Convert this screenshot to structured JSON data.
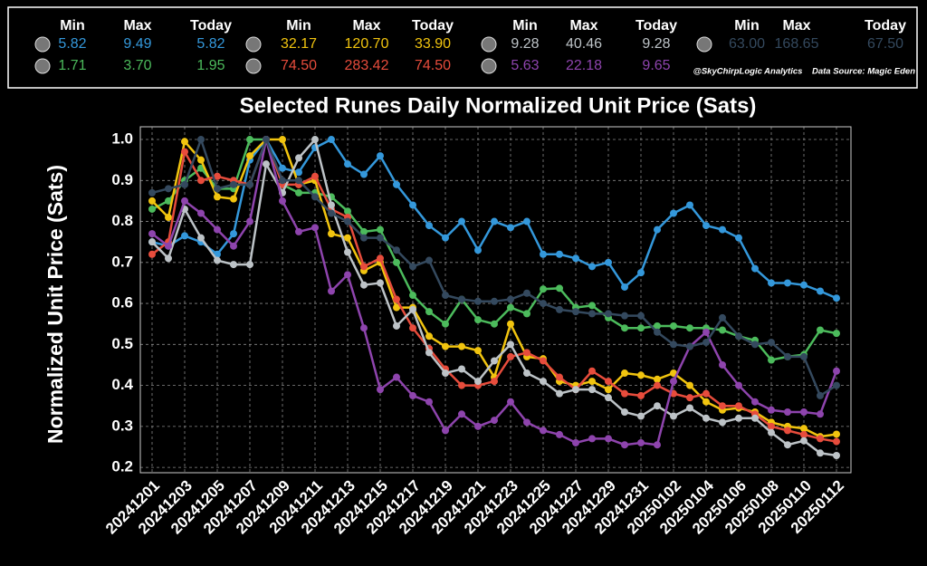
{
  "chart_data": {
    "type": "line",
    "title": "Selected Runes Daily Normalized Unit Price (Sats)",
    "y_label": "Normalized Unit Price (Sats)",
    "stats_headers": [
      "Min",
      "Max",
      "Today"
    ],
    "attribution": "@SkyChirpLogic Analytics",
    "source": "Data Source: Magic Eden",
    "grid": true,
    "ylim": [
      0.187,
      1.031
    ],
    "yticks": [
      0.2,
      0.3,
      0.4,
      0.5,
      0.6,
      0.7,
      0.8,
      0.9,
      {
        "value": 1.0,
        "label": "1.0"
      }
    ],
    "categories": [
      "20241201",
      null,
      "20241203",
      null,
      "20241205",
      null,
      "20241207",
      null,
      "20241209",
      null,
      "20241211",
      null,
      "20241213",
      null,
      "20241215",
      null,
      "20241217",
      null,
      "20241219",
      null,
      "20241221",
      null,
      "20241223",
      null,
      "20241225",
      null,
      "20241227",
      null,
      "20241229",
      null,
      "20241231",
      null,
      "20250102",
      null,
      "20250104",
      null,
      "20250106",
      null,
      "20250108",
      null,
      "20250110",
      null,
      "20250112"
    ],
    "series": [
      {
        "color": "#3498db",
        "stats": [
          "5.82",
          "9.49",
          "5.82"
        ],
        "values": [
          0.75,
          0.74,
          0.765,
          0.75,
          0.72,
          0.77,
          0.95,
          1.0,
          0.93,
          0.92,
          0.98,
          1.0,
          0.94,
          0.915,
          0.96,
          0.89,
          0.84,
          0.79,
          0.76,
          0.8,
          0.73,
          0.8,
          0.785,
          0.8,
          0.72,
          0.72,
          0.71,
          0.69,
          0.7,
          0.64,
          0.675,
          0.78,
          0.82,
          0.84,
          0.79,
          0.78,
          0.76,
          0.685,
          0.65,
          0.65,
          0.645,
          0.63,
          0.613
        ]
      },
      {
        "color": "#4cbb5c",
        "stats": [
          "1.71",
          "3.70",
          "1.95"
        ],
        "values": [
          0.83,
          0.85,
          0.9,
          0.93,
          0.88,
          0.88,
          1.0,
          1.0,
          0.89,
          0.87,
          0.87,
          0.86,
          0.825,
          0.775,
          0.78,
          0.7,
          0.62,
          0.58,
          0.55,
          0.61,
          0.56,
          0.55,
          0.59,
          0.575,
          0.635,
          0.637,
          0.59,
          0.595,
          0.565,
          0.54,
          0.54,
          0.545,
          0.545,
          0.54,
          0.54,
          0.535,
          0.52,
          0.51,
          0.462,
          0.47,
          0.475,
          0.535,
          0.527
        ]
      },
      {
        "color": "#f1c40f",
        "stats": [
          "32.17",
          "120.70",
          "33.90"
        ],
        "values": [
          0.85,
          0.81,
          0.995,
          0.95,
          0.86,
          0.855,
          0.96,
          1.0,
          1.0,
          0.89,
          0.9,
          0.77,
          0.76,
          0.68,
          0.7,
          0.59,
          0.59,
          0.52,
          0.495,
          0.495,
          0.485,
          0.42,
          0.55,
          0.47,
          0.465,
          0.41,
          0.4,
          0.41,
          0.39,
          0.43,
          0.425,
          0.415,
          0.43,
          0.4,
          0.36,
          0.34,
          0.345,
          0.335,
          0.31,
          0.3,
          0.295,
          0.275,
          0.281
        ]
      },
      {
        "color": "#e74c3c",
        "stats": [
          "74.50",
          "283.42",
          "74.50"
        ],
        "values": [
          0.72,
          0.75,
          0.97,
          0.9,
          0.91,
          0.9,
          0.89,
          1.0,
          0.89,
          0.89,
          0.91,
          0.83,
          0.81,
          0.69,
          0.71,
          0.61,
          0.54,
          0.49,
          0.44,
          0.4,
          0.4,
          0.41,
          0.47,
          0.48,
          0.46,
          0.42,
          0.39,
          0.435,
          0.41,
          0.38,
          0.375,
          0.4,
          0.38,
          0.37,
          0.38,
          0.35,
          0.35,
          0.33,
          0.3,
          0.29,
          0.28,
          0.27,
          0.263
        ]
      },
      {
        "color": "#bdc3c7",
        "stats": [
          "9.28",
          "40.46",
          "9.28"
        ],
        "values": [
          0.75,
          0.71,
          0.83,
          0.76,
          0.705,
          0.695,
          0.695,
          0.94,
          0.87,
          0.955,
          1.0,
          0.84,
          0.725,
          0.645,
          0.65,
          0.545,
          0.585,
          0.48,
          0.43,
          0.44,
          0.41,
          0.46,
          0.5,
          0.43,
          0.41,
          0.38,
          0.39,
          0.39,
          0.37,
          0.335,
          0.325,
          0.35,
          0.325,
          0.345,
          0.32,
          0.31,
          0.32,
          0.32,
          0.285,
          0.255,
          0.265,
          0.235,
          0.229
        ]
      },
      {
        "color": "#8e44ad",
        "stats": [
          "5.63",
          "22.18",
          "9.65"
        ],
        "values": [
          0.77,
          0.74,
          0.85,
          0.82,
          0.78,
          0.74,
          0.8,
          1.0,
          0.85,
          0.775,
          0.785,
          0.63,
          0.67,
          0.54,
          0.39,
          0.42,
          0.375,
          0.36,
          0.29,
          0.33,
          0.3,
          0.315,
          0.36,
          0.31,
          0.29,
          0.28,
          0.26,
          0.27,
          0.27,
          0.255,
          0.26,
          0.255,
          0.41,
          0.495,
          0.53,
          0.45,
          0.4,
          0.36,
          0.34,
          0.335,
          0.335,
          0.33,
          0.435
        ]
      },
      {
        "color": "#34495e",
        "stats": [
          "63.00",
          "168.65",
          "67.50"
        ],
        "values": [
          0.87,
          0.88,
          0.89,
          1.0,
          0.88,
          0.89,
          0.89,
          1.0,
          0.9,
          0.9,
          0.86,
          0.82,
          0.8,
          0.76,
          0.76,
          0.73,
          0.69,
          0.705,
          0.62,
          0.61,
          0.605,
          0.605,
          0.61,
          0.625,
          0.6,
          0.585,
          0.58,
          0.575,
          0.575,
          0.57,
          0.57,
          0.53,
          0.5,
          0.495,
          0.505,
          0.565,
          0.52,
          0.5,
          0.505,
          0.47,
          0.47,
          0.375,
          0.4
        ]
      }
    ]
  }
}
